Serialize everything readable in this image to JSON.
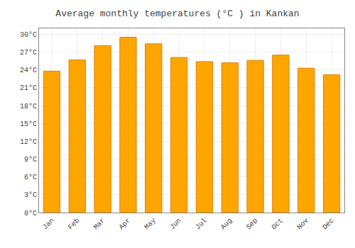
{
  "chart_data": {
    "type": "bar",
    "title": "Average monthly temperatures (°C ) in Kankan",
    "categories": [
      "Jan",
      "Feb",
      "Mar",
      "Apr",
      "May",
      "Jun",
      "Jul",
      "Aug",
      "Sep",
      "Oct",
      "Nov",
      "Dec"
    ],
    "values": [
      23.8,
      25.7,
      28.1,
      29.5,
      28.4,
      26.1,
      25.4,
      25.2,
      25.6,
      26.5,
      24.3,
      23.2
    ],
    "color": "#FFA500",
    "ylim": [
      0,
      31
    ],
    "yticks": [
      {
        "value": 0,
        "label": "0°C"
      },
      {
        "value": 3,
        "label": "3°C"
      },
      {
        "value": 6,
        "label": "6°C"
      },
      {
        "value": 9,
        "label": "9°C"
      },
      {
        "value": 12,
        "label": "12°C"
      },
      {
        "value": 15,
        "label": "15°C"
      },
      {
        "value": 18,
        "label": "18°C"
      },
      {
        "value": 21,
        "label": "21°C"
      },
      {
        "value": 24,
        "label": "24°C"
      },
      {
        "value": 27,
        "label": "27°C"
      },
      {
        "value": 30,
        "label": "30°C"
      }
    ],
    "grid": true
  }
}
